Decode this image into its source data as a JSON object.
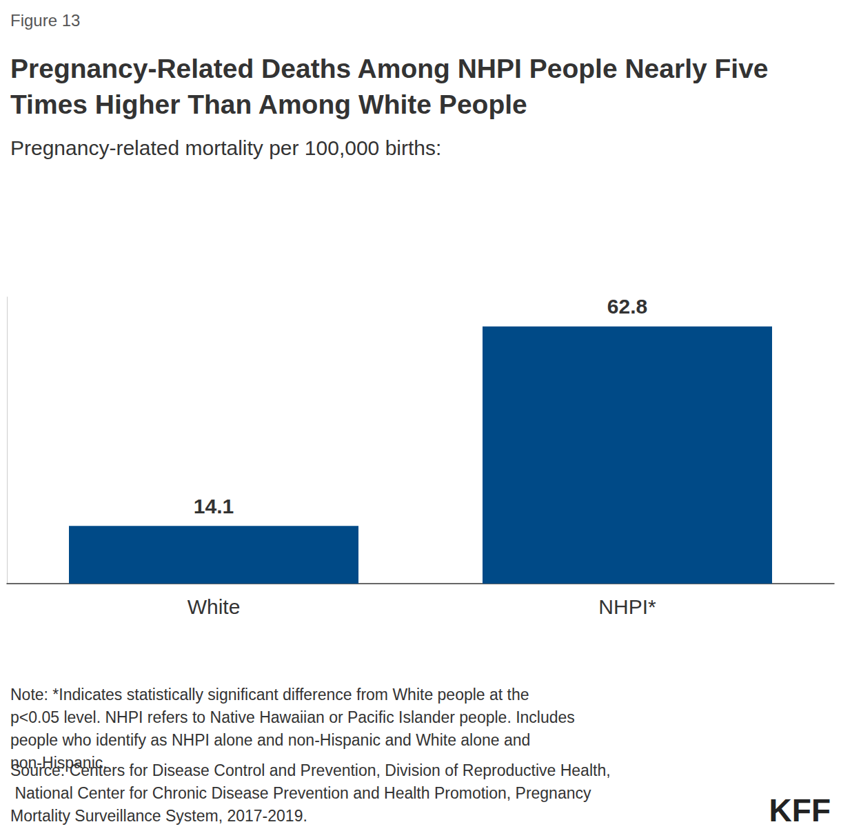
{
  "chart_data": {
    "type": "bar",
    "figure_label": "Figure 13",
    "title": "Pregnancy-Related Deaths Among NHPI People Nearly Five Times Higher Than Among White People",
    "subtitle": "Pregnancy-related mortality per 100,000 births:",
    "categories": [
      "White",
      "NHPI*"
    ],
    "values": [
      14.1,
      62.8
    ],
    "color": "#004a87",
    "ylim": [
      0,
      70
    ],
    "grid": false,
    "data_labels": true,
    "tick_labels": "x",
    "note": "Note: *Indicates statistically significant difference from White people at the p<0.05 level. NHPI refers to Native Hawaiian or Pacific Islander people. Includes people who identify as NHPI alone and non-Hispanic and White alone and non-Hispanic.",
    "source": "Source: Centers for Disease Control and Prevention, Division of Reproductive Health, National Center for Chronic Disease Prevention and Health Promotion, Pregnancy Mortality Surveillance System, 2017-2019.",
    "logo": "KFF"
  }
}
